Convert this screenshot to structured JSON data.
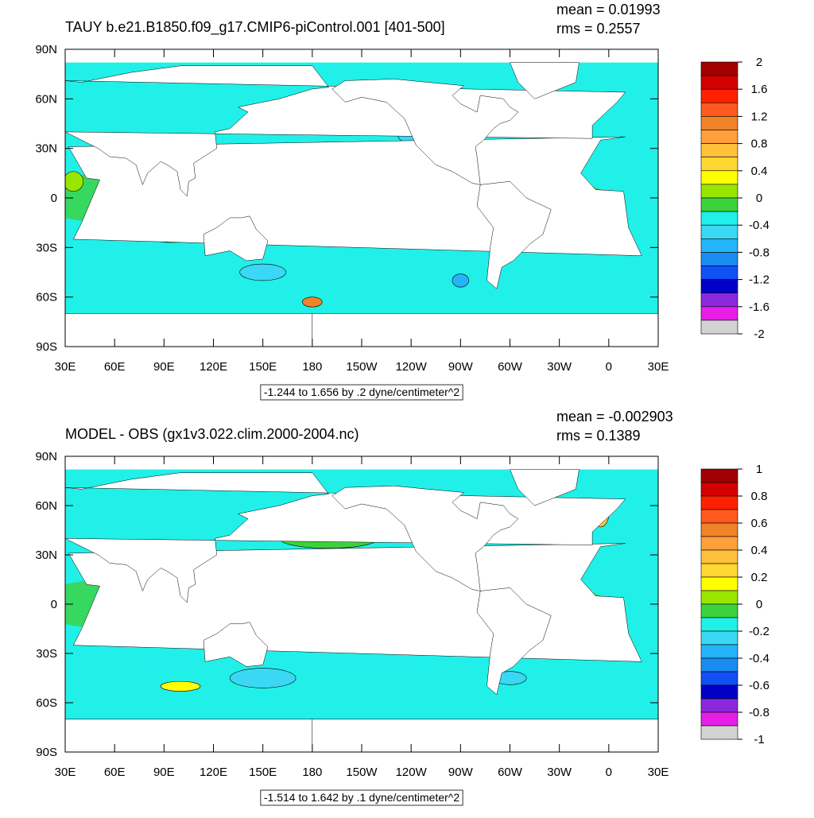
{
  "maps": [
    {
      "title": "TAUY b.e21.B1850.f09_g17.CMIP6-piControl.001 [401-500]",
      "mean": "mean = 0.01993",
      "rms": "rms = 0.2557",
      "info": "-1.244 to 1.656 by .2 dyne/centimeter^2",
      "colorbar": {
        "labels": [
          2,
          1.6,
          1.2,
          0.8,
          0.4,
          0,
          -0.4,
          -0.8,
          -1.2,
          -1.6,
          -2
        ]
      }
    },
    {
      "title": "MODEL - OBS (gx1v3.022.clim.2000-2004.nc)",
      "mean": "mean = -0.002903",
      "rms": "rms = 0.1389",
      "info": "-1.514 to 1.642 by .1 dyne/centimeter^2",
      "colorbar": {
        "labels": [
          1,
          0.8,
          0.6,
          0.4,
          0.2,
          0,
          -0.2,
          -0.4,
          -0.6,
          -0.8,
          -1
        ]
      }
    }
  ],
  "colors": [
    "#a00000",
    "#d40000",
    "#ff2000",
    "#ff5a1e",
    "#f08228",
    "#ffa03c",
    "#ffc03c",
    "#ffd732",
    "#ffff00",
    "#98e600",
    "#3cd23c",
    "#3cd23c",
    "#20f0e8",
    "#3ad8f5",
    "#24b4fa",
    "#1a8cf0",
    "#1050f5",
    "#0000c8",
    "#8c28dc",
    "#e61ee6",
    "#d2d2d2",
    "#707070"
  ],
  "lat_ticks": [
    {
      "value": 90,
      "label": "90N"
    },
    {
      "value": 60,
      "label": "60N"
    },
    {
      "value": 30,
      "label": "30N"
    },
    0,
    {
      "value": -30,
      "label": "30S"
    },
    {
      "value": -60,
      "label": "60S"
    },
    {
      "value": -90,
      "label": "90S"
    }
  ],
  "lon_ticks": [
    {
      "value": 30,
      "label": "30E"
    },
    {
      "value": 60,
      "label": "60E"
    },
    {
      "value": 90,
      "label": "90E"
    },
    {
      "value": 120,
      "label": "120E"
    },
    {
      "value": 150,
      "label": "150E"
    },
    180,
    {
      "value": 210,
      "label": "150W"
    },
    {
      "value": 240,
      "label": "120W"
    },
    {
      "value": 270,
      "label": "90W"
    },
    {
      "value": 300,
      "label": "60W"
    },
    {
      "value": 330,
      "label": "30W"
    },
    {
      "value": 360,
      "label": "0"
    },
    {
      "value": 390,
      "label": "30E"
    }
  ]
}
